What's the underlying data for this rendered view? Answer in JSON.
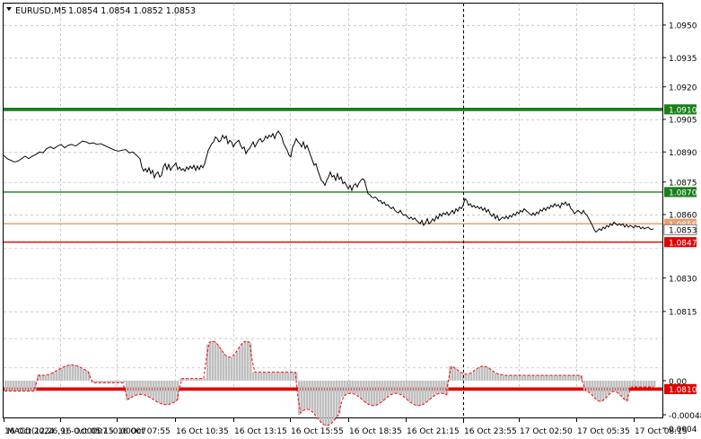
{
  "header": {
    "symbol": "EURUSD,M5",
    "ohlc": "1.0854 1.0854 1.0852 1.0853"
  },
  "colors": {
    "green_level": "#1a7f1a",
    "red_level": "#e00000",
    "orange_level": "#e8a070",
    "price_line": "#000000",
    "histogram": "#c0c0c0",
    "signal": "#ff0000",
    "grid": "#c8c8c8"
  },
  "price_axis": {
    "ticks": [
      "1.0950",
      "1.0935",
      "1.0920",
      "1.0905",
      "1.0890",
      "1.0875",
      "1.0860",
      "1.0830",
      "1.0815"
    ]
  },
  "levels": [
    {
      "value": 1.091,
      "label": "1.0910",
      "color": "green",
      "thickness": "thick"
    },
    {
      "value": 1.087,
      "label": "1.0870",
      "color": "green",
      "thickness": "thin"
    },
    {
      "value": 1.0856,
      "label": "1.0856",
      "color": "orange",
      "thickness": "thin"
    },
    {
      "value": 1.0853,
      "label": "1.0853",
      "color": "current",
      "thickness": "none"
    },
    {
      "value": 1.0847,
      "label": "1.0847",
      "color": "red",
      "thickness": "thin"
    },
    {
      "value": 1.081,
      "label": "1.0810",
      "color": "red",
      "thickness": "thick"
    }
  ],
  "macd": {
    "title": "MACD(12,26,9) -0.00007 -0.00007",
    "ticks": [
      "0.0004",
      "0.00",
      "-0.00048"
    ]
  },
  "time_axis": {
    "labels": [
      "16 Oct 2024",
      "16 Oct 05:15",
      "16 Oct 07:55",
      "16 Oct 10:35",
      "16 Oct 13:15",
      "16 Oct 15:55",
      "16 Oct 18:35",
      "16 Oct 21:15",
      "16 Oct 23:55",
      "17 Oct 02:50",
      "17 Oct 05:35",
      "17 Oct 08:15"
    ]
  },
  "chart_data": {
    "type": "line",
    "title": "EURUSD,M5",
    "ylim": [
      1.0804,
      1.0962
    ],
    "x": [
      "16 Oct 2024",
      "16 Oct 05:15",
      "16 Oct 07:55",
      "16 Oct 10:35",
      "16 Oct 13:15",
      "16 Oct 15:55",
      "16 Oct 18:35",
      "16 Oct 21:15",
      "16 Oct 23:55",
      "17 Oct 02:50",
      "17 Oct 05:35",
      "17 Oct 08:15"
    ],
    "series": [
      {
        "values": [
          1.0888,
          1.0894,
          1.0882,
          1.0882,
          1.0895,
          1.0882,
          1.0866,
          1.0856,
          1.0862,
          1.086,
          1.086,
          1.0853
        ]
      }
    ]
  }
}
